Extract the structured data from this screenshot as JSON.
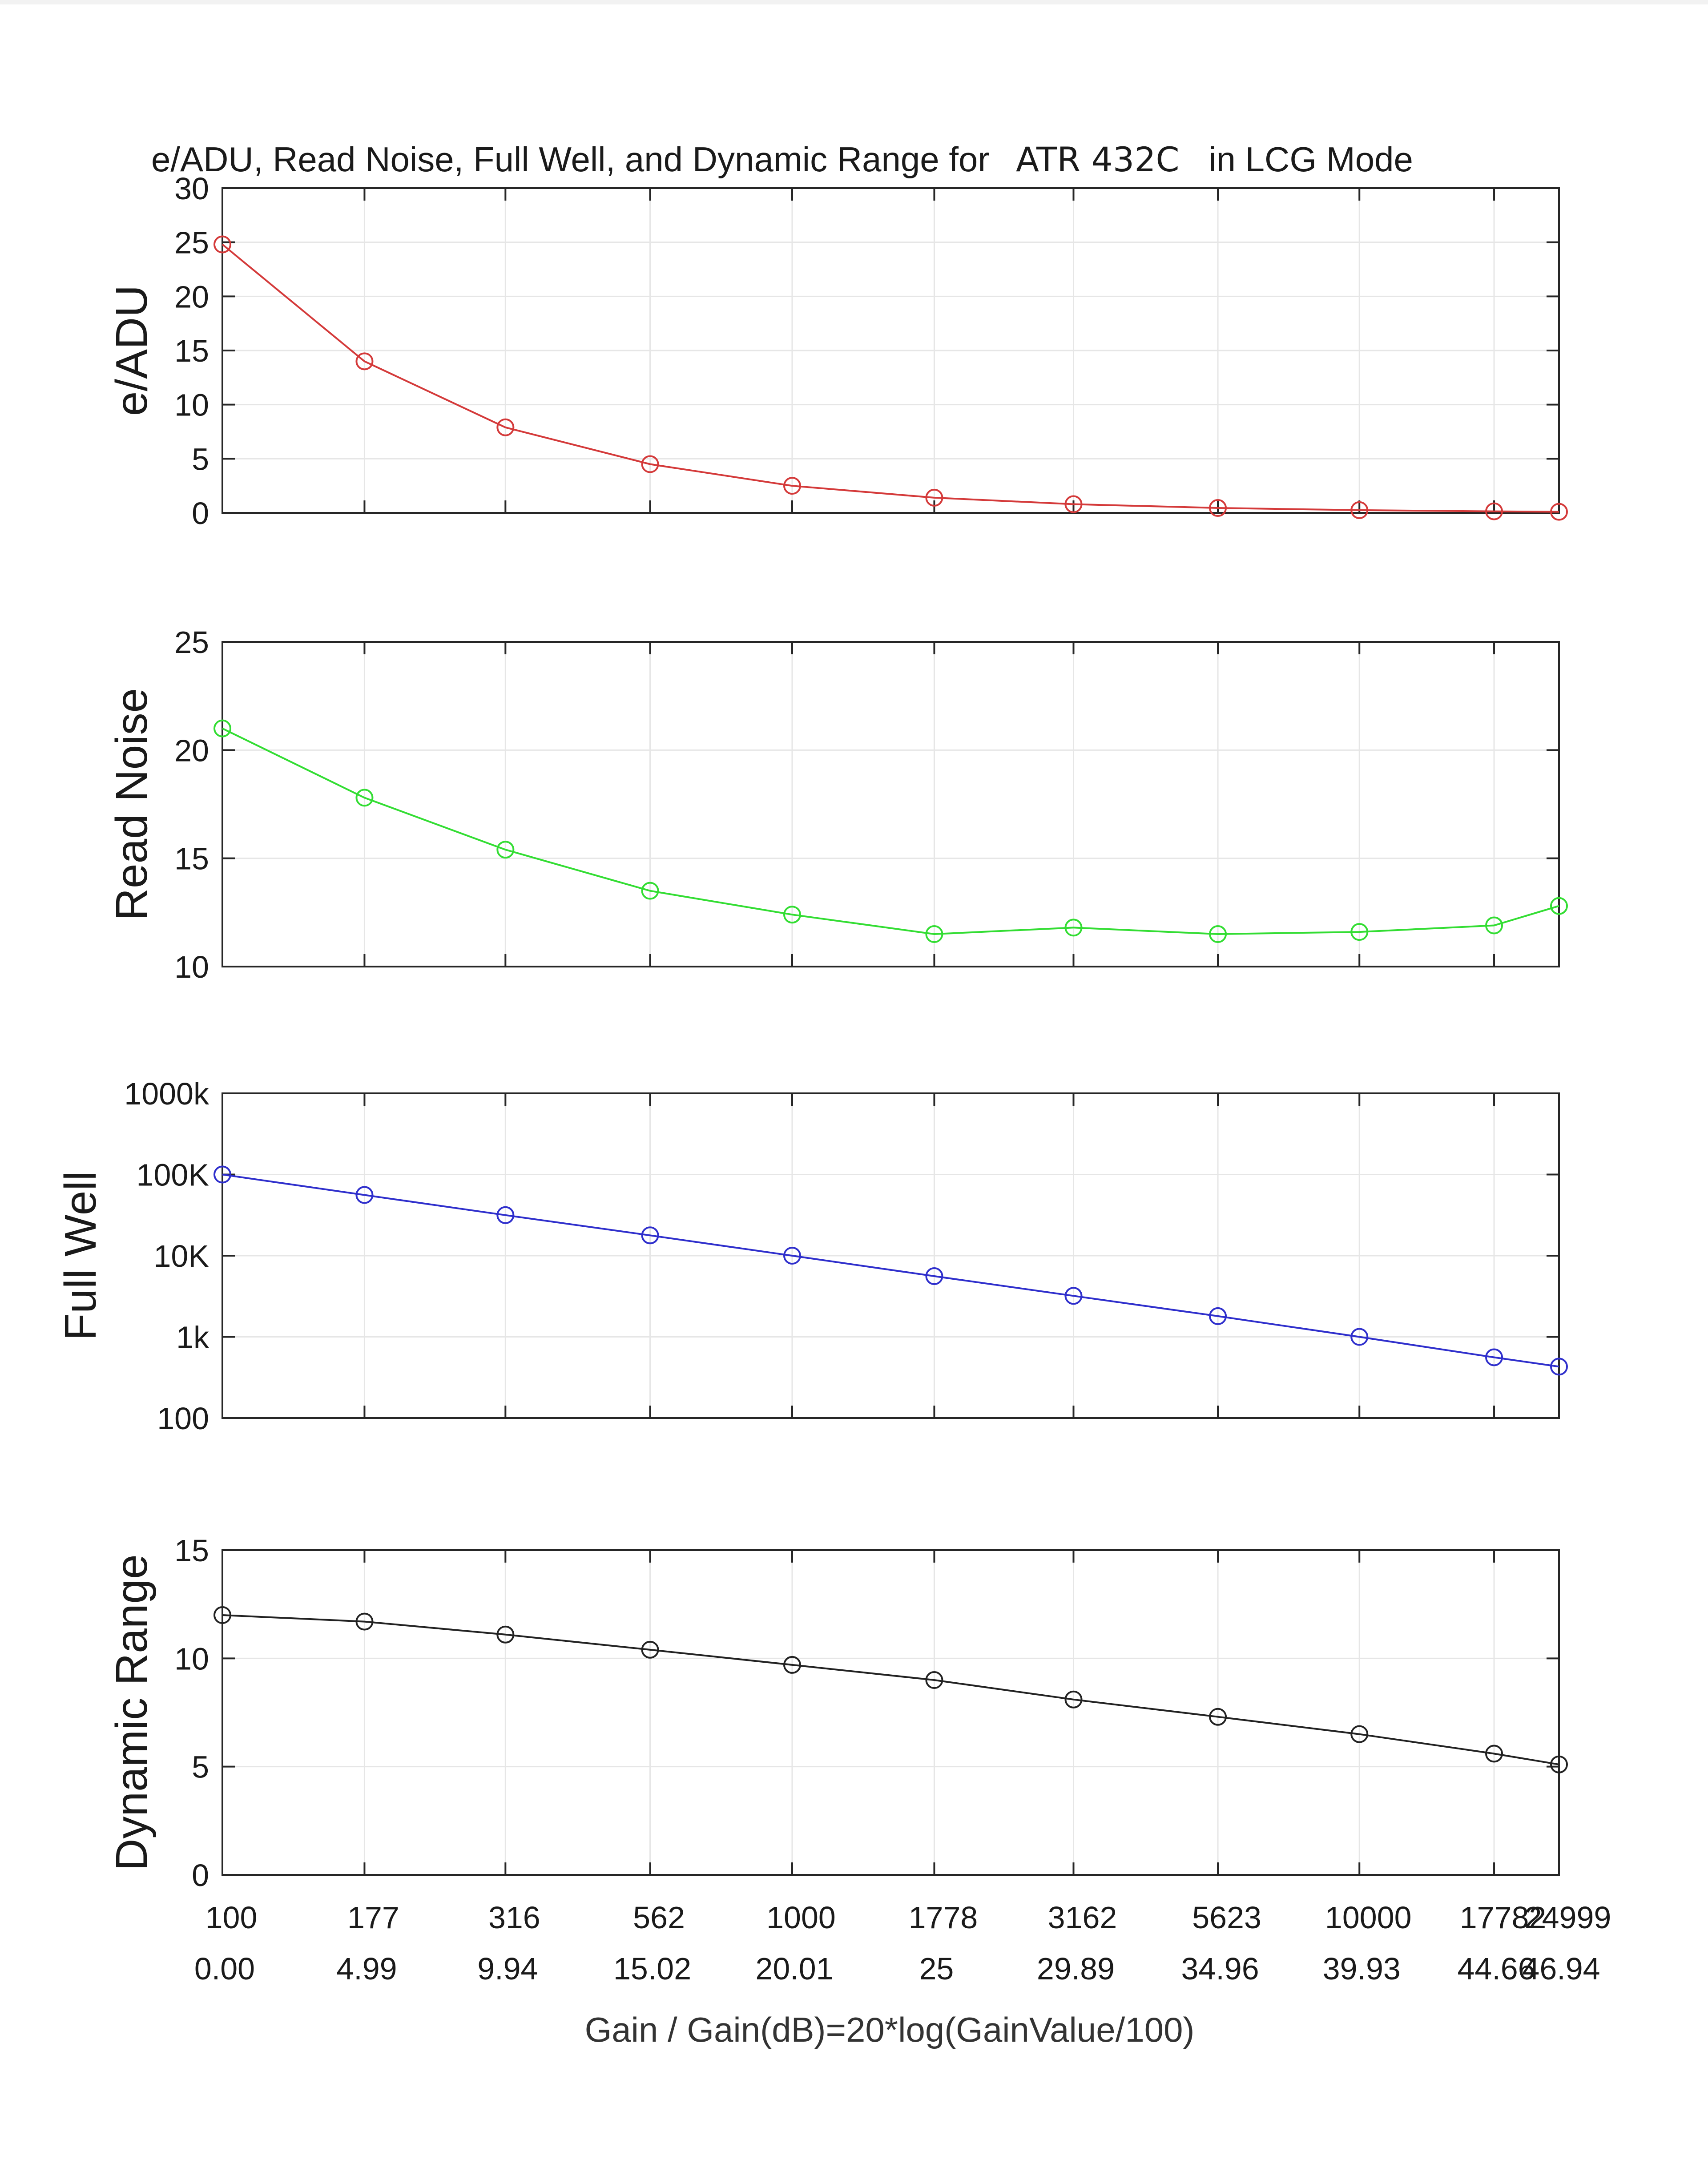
{
  "chart_data": {
    "type": "line",
    "title": "e/ADU, Read Noise, Full Well, and Dynamic Range for",
    "title_model": "ATR 432C",
    "title_suffix": "in LCG Mode",
    "xlabel": "Gain / Gain(dB)=20*log(GainValue/100)",
    "x_tick_labels": [
      "100",
      "177",
      "316",
      "562",
      "1000",
      "1778",
      "3162",
      "5623",
      "10000",
      "17782",
      "24999"
    ],
    "x_tick_db_labels": [
      "0.00",
      "4.99",
      "9.94",
      "15.02",
      "20.01",
      "25",
      "29.89",
      "34.96",
      "39.93",
      "44.66",
      "46.94"
    ],
    "x": [
      0.0,
      4.99,
      9.94,
      15.02,
      20.01,
      25,
      29.89,
      34.96,
      39.93,
      44.66,
      46.94
    ],
    "xlim": [
      0,
      46.94
    ],
    "grid": true,
    "panels": [
      {
        "ylabel": "e/ADU",
        "scale": "linear",
        "ylim": [
          0,
          30
        ],
        "yticks": [
          0,
          5,
          10,
          15,
          20,
          25,
          30
        ],
        "ytick_labels": [
          "0",
          "5",
          "10",
          "15",
          "20",
          "25",
          "30"
        ],
        "color": "#d43a3a",
        "values": [
          24.8,
          14.0,
          7.9,
          4.5,
          2.5,
          1.4,
          0.8,
          0.45,
          0.25,
          0.14,
          0.1
        ]
      },
      {
        "ylabel": "Read Noise",
        "scale": "linear",
        "ylim": [
          10,
          25
        ],
        "yticks": [
          10,
          15,
          20,
          25
        ],
        "ytick_labels": [
          "10",
          "15",
          "20",
          "25"
        ],
        "color": "#33dd33",
        "values": [
          21.0,
          17.8,
          15.4,
          13.5,
          12.4,
          11.5,
          11.8,
          11.5,
          11.6,
          11.9,
          12.8
        ]
      },
      {
        "ylabel": "Full Well",
        "scale": "log",
        "ylim": [
          100,
          1000000
        ],
        "yticks": [
          100,
          1000,
          10000,
          100000,
          1000000
        ],
        "ytick_labels": [
          "100",
          "1k",
          "10K",
          "100K",
          "1000k"
        ],
        "color": "#2f2fcc",
        "values": [
          100000,
          56000,
          31600,
          17800,
          10000,
          5600,
          3200,
          1800,
          1000,
          560,
          430
        ]
      },
      {
        "ylabel": "Dynamic Range",
        "scale": "linear",
        "ylim": [
          0,
          15
        ],
        "yticks": [
          0,
          5,
          10,
          15
        ],
        "ytick_labels": [
          "0",
          "5",
          "10",
          "15"
        ],
        "color": "#222222",
        "values": [
          12.0,
          11.7,
          11.1,
          10.4,
          9.7,
          9.0,
          8.1,
          7.3,
          6.5,
          5.6,
          5.1
        ]
      }
    ]
  }
}
